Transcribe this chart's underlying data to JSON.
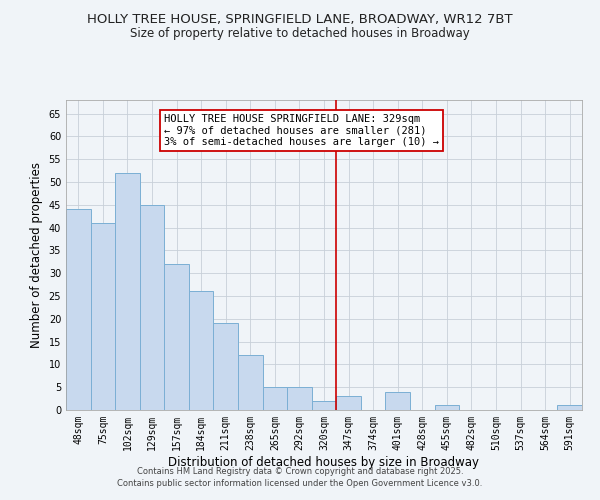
{
  "title": "HOLLY TREE HOUSE, SPRINGFIELD LANE, BROADWAY, WR12 7BT",
  "subtitle": "Size of property relative to detached houses in Broadway",
  "xlabel": "Distribution of detached houses by size in Broadway",
  "ylabel": "Number of detached properties",
  "bar_labels": [
    "48sqm",
    "75sqm",
    "102sqm",
    "129sqm",
    "157sqm",
    "184sqm",
    "211sqm",
    "238sqm",
    "265sqm",
    "292sqm",
    "320sqm",
    "347sqm",
    "374sqm",
    "401sqm",
    "428sqm",
    "455sqm",
    "482sqm",
    "510sqm",
    "537sqm",
    "564sqm",
    "591sqm"
  ],
  "bar_values": [
    44,
    41,
    52,
    45,
    32,
    26,
    19,
    12,
    5,
    5,
    2,
    3,
    0,
    4,
    0,
    1,
    0,
    0,
    0,
    0,
    1
  ],
  "bar_color": "#c8d9ee",
  "bar_edge_color": "#7bafd4",
  "grid_color": "#c8d0d8",
  "vline_x_idx": 10,
  "vline_color": "#cc0000",
  "annotation_text": "HOLLY TREE HOUSE SPRINGFIELD LANE: 329sqm\n← 97% of detached houses are smaller (281)\n3% of semi-detached houses are larger (10) →",
  "annotation_box_color": "#cc0000",
  "annotation_bg": "#ffffff",
  "ylim": [
    0,
    68
  ],
  "yticks": [
    0,
    5,
    10,
    15,
    20,
    25,
    30,
    35,
    40,
    45,
    50,
    55,
    60,
    65
  ],
  "footer_line1": "Contains HM Land Registry data © Crown copyright and database right 2025.",
  "footer_line2": "Contains public sector information licensed under the Open Government Licence v3.0.",
  "bg_color": "#f0f4f8",
  "title_fontsize": 9.5,
  "subtitle_fontsize": 8.5,
  "tick_fontsize": 7,
  "label_fontsize": 8.5,
  "footer_fontsize": 6,
  "annotation_fontsize": 7.5
}
